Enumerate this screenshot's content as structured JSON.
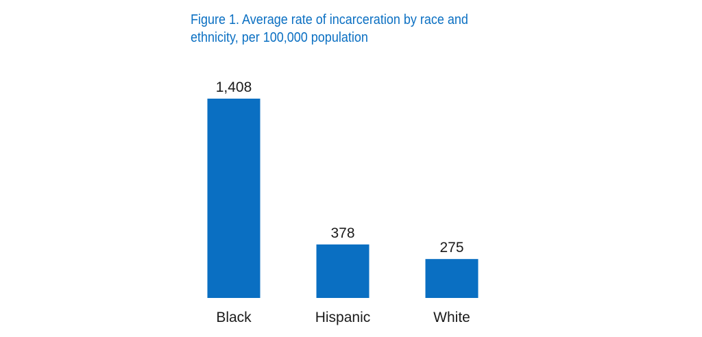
{
  "chart_data": {
    "type": "bar",
    "title": "Figure 1. Average rate of incarceration by race and ethnicity, per 100,000 population",
    "categories": [
      "Black",
      "Hispanic",
      "White"
    ],
    "values": [
      1408,
      378,
      275
    ],
    "value_labels": [
      "1,408",
      "378",
      "275"
    ],
    "xlabel": "",
    "ylabel": "",
    "ylim": [
      0,
      1408
    ],
    "grid": false,
    "legend": "none",
    "bar_color": "#0a6fc2"
  }
}
